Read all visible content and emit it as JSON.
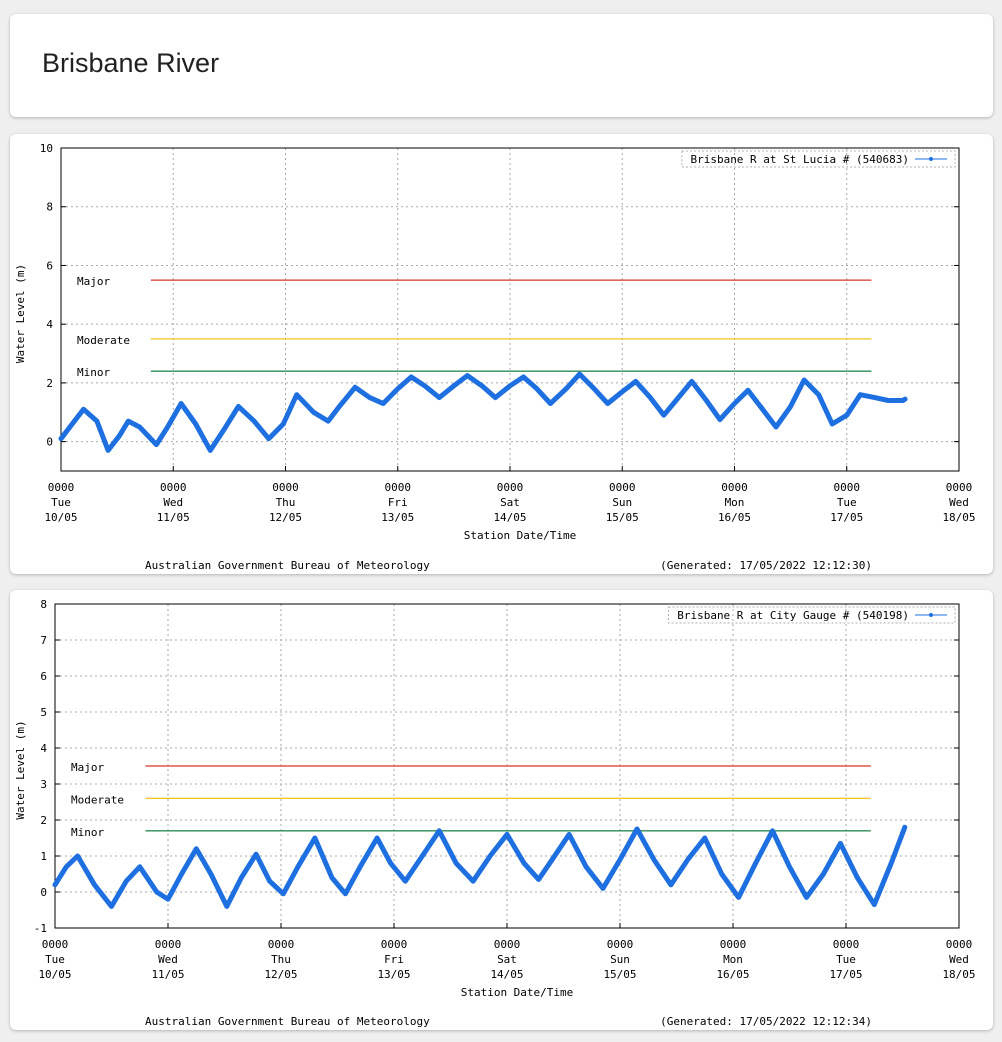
{
  "page": {
    "title": "Brisbane River"
  },
  "charts": [
    {
      "station": "Brisbane R at St Lucia # (540683)",
      "ylabel": "Water Level (m)",
      "xlabel": "Station Date/Time",
      "footer_left": "Australian Government Bureau of Meteorology",
      "footer_right": "(Generated: 17/05/2022 12:12:30)",
      "series_color": "#1e6fe0"
    },
    {
      "station": "Brisbane R at City Gauge # (540198)",
      "ylabel": "Water Level (m)",
      "xlabel": "Station Date/Time",
      "footer_left": "Australian Government Bureau of Meteorology",
      "footer_right": "(Generated: 17/05/2022 12:12:34)",
      "series_color": "#1e6fe0"
    }
  ],
  "chart_data": [
    {
      "type": "line",
      "series": [
        {
          "name": "Brisbane R at St Lucia # (540683)",
          "x": [
            0.0,
            0.1,
            0.2,
            0.32,
            0.42,
            0.52,
            0.6,
            0.7,
            0.85,
            0.95,
            1.07,
            1.2,
            1.33,
            1.45,
            1.58,
            1.72,
            1.85,
            1.98,
            2.1,
            2.25,
            2.38,
            2.48,
            2.62,
            2.75,
            2.87,
            3.0,
            3.12,
            3.24,
            3.37,
            3.5,
            3.62,
            3.75,
            3.87,
            4.0,
            4.12,
            4.24,
            4.36,
            4.5,
            4.62,
            4.75,
            4.87,
            5.0,
            5.12,
            5.25,
            5.37,
            5.5,
            5.62,
            5.75,
            5.87,
            6.0,
            6.12,
            6.25,
            6.37,
            6.5,
            6.62,
            6.75,
            6.87,
            7.0,
            7.12,
            7.25,
            7.37,
            7.5,
            7.52
          ],
          "y": [
            0.1,
            0.6,
            1.1,
            0.7,
            -0.3,
            0.2,
            0.7,
            0.5,
            -0.1,
            0.5,
            1.3,
            0.6,
            -0.3,
            0.4,
            1.2,
            0.7,
            0.1,
            0.6,
            1.6,
            1.0,
            0.7,
            1.2,
            1.85,
            1.5,
            1.3,
            1.8,
            2.2,
            1.9,
            1.5,
            1.9,
            2.25,
            1.9,
            1.5,
            1.9,
            2.2,
            1.8,
            1.3,
            1.8,
            2.3,
            1.8,
            1.3,
            1.7,
            2.05,
            1.5,
            0.9,
            1.5,
            2.05,
            1.4,
            0.75,
            1.3,
            1.75,
            1.1,
            0.5,
            1.2,
            2.1,
            1.6,
            0.6,
            0.9,
            1.6,
            1.5,
            1.4,
            1.4,
            1.45
          ]
        }
      ],
      "thresholds": [
        {
          "label": "Major",
          "value": 5.5,
          "color": "#d9342b"
        },
        {
          "label": "Moderate",
          "value": 3.5,
          "color": "#f0c419"
        },
        {
          "label": "Minor",
          "value": 2.4,
          "color": "#2e8b57"
        }
      ],
      "threshold_x_range": [
        0.8,
        7.22
      ],
      "xlim": [
        0,
        8
      ],
      "ylim": [
        -1,
        10
      ],
      "yticks": [
        0,
        2,
        4,
        6,
        8,
        10
      ],
      "xtick_labels": [
        [
          "0000",
          "Tue",
          "10/05"
        ],
        [
          "0000",
          "Wed",
          "11/05"
        ],
        [
          "0000",
          "Thu",
          "12/05"
        ],
        [
          "0000",
          "Fri",
          "13/05"
        ],
        [
          "0000",
          "Sat",
          "14/05"
        ],
        [
          "0000",
          "Sun",
          "15/05"
        ],
        [
          "0000",
          "Mon",
          "16/05"
        ],
        [
          "0000",
          "Tue",
          "17/05"
        ],
        [
          "0000",
          "Wed",
          "18/05"
        ]
      ],
      "xlabel": "Station Date/Time",
      "ylabel": "Water Level (m)",
      "grid": true,
      "legend": "top-right"
    },
    {
      "type": "line",
      "series": [
        {
          "name": "Brisbane R at City Gauge # (540198)",
          "x": [
            0.0,
            0.1,
            0.2,
            0.35,
            0.5,
            0.63,
            0.75,
            0.9,
            1.0,
            1.12,
            1.25,
            1.38,
            1.52,
            1.65,
            1.78,
            1.9,
            2.02,
            2.15,
            2.3,
            2.45,
            2.57,
            2.7,
            2.85,
            2.97,
            3.1,
            3.25,
            3.4,
            3.55,
            3.7,
            3.85,
            4.0,
            4.15,
            4.28,
            4.4,
            4.55,
            4.7,
            4.85,
            5.0,
            5.15,
            5.3,
            5.45,
            5.6,
            5.75,
            5.9,
            6.05,
            6.2,
            6.35,
            6.5,
            6.65,
            6.8,
            6.95,
            7.1,
            7.25,
            7.4,
            7.52
          ],
          "y": [
            0.2,
            0.7,
            1.0,
            0.2,
            -0.4,
            0.3,
            0.7,
            0.0,
            -0.2,
            0.5,
            1.2,
            0.5,
            -0.4,
            0.4,
            1.05,
            0.3,
            -0.05,
            0.7,
            1.5,
            0.4,
            -0.05,
            0.7,
            1.5,
            0.8,
            0.3,
            1.0,
            1.7,
            0.8,
            0.3,
            1.0,
            1.6,
            0.8,
            0.35,
            0.9,
            1.6,
            0.7,
            0.1,
            0.9,
            1.75,
            0.9,
            0.2,
            0.9,
            1.5,
            0.5,
            -0.15,
            0.8,
            1.7,
            0.7,
            -0.15,
            0.5,
            1.35,
            0.4,
            -0.35,
            0.8,
            1.8
          ]
        }
      ],
      "thresholds": [
        {
          "label": "Major",
          "value": 3.5,
          "color": "#d9342b"
        },
        {
          "label": "Moderate",
          "value": 2.6,
          "color": "#f0c419"
        },
        {
          "label": "Minor",
          "value": 1.7,
          "color": "#2e8b57"
        }
      ],
      "threshold_x_range": [
        0.8,
        7.22
      ],
      "xlim": [
        0,
        8
      ],
      "ylim": [
        -1,
        8
      ],
      "yticks": [
        -1,
        0,
        1,
        2,
        3,
        4,
        5,
        6,
        7,
        8
      ],
      "xtick_labels": [
        [
          "0000",
          "Tue",
          "10/05"
        ],
        [
          "0000",
          "Wed",
          "11/05"
        ],
        [
          "0000",
          "Thu",
          "12/05"
        ],
        [
          "0000",
          "Fri",
          "13/05"
        ],
        [
          "0000",
          "Sat",
          "14/05"
        ],
        [
          "0000",
          "Sun",
          "15/05"
        ],
        [
          "0000",
          "Mon",
          "16/05"
        ],
        [
          "0000",
          "Tue",
          "17/05"
        ],
        [
          "0000",
          "Wed",
          "18/05"
        ]
      ],
      "xlabel": "Station Date/Time",
      "ylabel": "Water Level (m)",
      "grid": true,
      "legend": "top-right"
    }
  ]
}
